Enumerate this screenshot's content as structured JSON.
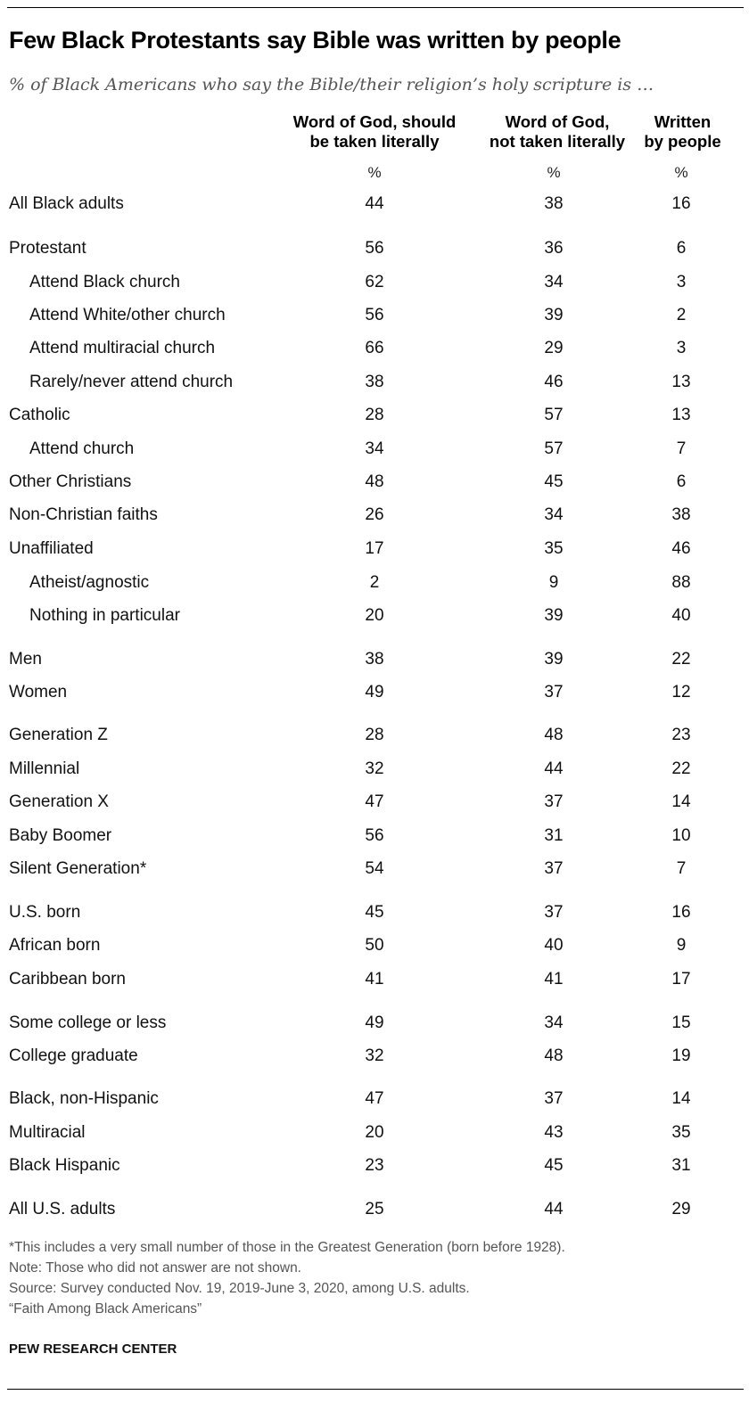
{
  "title": "Few Black Protestants say Bible was written by people",
  "subtitle": "% of Black Americans who say the Bible/their religion’s holy scripture is …",
  "chart_data": {
    "type": "table",
    "columns": [
      {
        "line1": "Word of God, should",
        "line2": "be taken literally",
        "unit": "%"
      },
      {
        "line1": "Word of God,",
        "line2": "not taken literally",
        "unit": "%"
      },
      {
        "line1": "Written",
        "line2": "by people",
        "unit": "%"
      }
    ],
    "rows": [
      {
        "label": "All Black adults",
        "indent": false,
        "values": [
          "44",
          "38",
          "16"
        ]
      },
      {
        "label": "Protestant",
        "indent": false,
        "values": [
          "56",
          "36",
          "6"
        ]
      },
      {
        "label": "Attend Black church",
        "indent": true,
        "values": [
          "62",
          "34",
          "3"
        ]
      },
      {
        "label": "Attend White/other church",
        "indent": true,
        "values": [
          "56",
          "39",
          "2"
        ]
      },
      {
        "label": "Attend multiracial church",
        "indent": true,
        "values": [
          "66",
          "29",
          "3"
        ]
      },
      {
        "label": "Rarely/never attend church",
        "indent": true,
        "values": [
          "38",
          "46",
          "13"
        ]
      },
      {
        "label": "Catholic",
        "indent": false,
        "values": [
          "28",
          "57",
          "13"
        ]
      },
      {
        "label": "Attend church",
        "indent": true,
        "values": [
          "34",
          "57",
          "7"
        ]
      },
      {
        "label": "Other Christians",
        "indent": false,
        "values": [
          "48",
          "45",
          "6"
        ]
      },
      {
        "label": "Non-Christian faiths",
        "indent": false,
        "values": [
          "26",
          "34",
          "38"
        ]
      },
      {
        "label": "Unaffiliated",
        "indent": false,
        "values": [
          "17",
          "35",
          "46"
        ]
      },
      {
        "label": "Atheist/agnostic",
        "indent": true,
        "values": [
          "2",
          "9",
          "88"
        ]
      },
      {
        "label": "Nothing in particular",
        "indent": true,
        "values": [
          "20",
          "39",
          "40"
        ]
      },
      {
        "label": "Men",
        "indent": false,
        "values": [
          "38",
          "39",
          "22"
        ]
      },
      {
        "label": "Women",
        "indent": false,
        "values": [
          "49",
          "37",
          "12"
        ]
      },
      {
        "label": "Generation Z",
        "indent": false,
        "values": [
          "28",
          "48",
          "23"
        ]
      },
      {
        "label": "Millennial",
        "indent": false,
        "values": [
          "32",
          "44",
          "22"
        ]
      },
      {
        "label": "Generation X",
        "indent": false,
        "values": [
          "47",
          "37",
          "14"
        ]
      },
      {
        "label": "Baby Boomer",
        "indent": false,
        "values": [
          "56",
          "31",
          "10"
        ]
      },
      {
        "label": "Silent Generation*",
        "indent": false,
        "values": [
          "54",
          "37",
          "7"
        ]
      },
      {
        "label": "U.S. born",
        "indent": false,
        "values": [
          "45",
          "37",
          "16"
        ]
      },
      {
        "label": "African born",
        "indent": false,
        "values": [
          "50",
          "40",
          "9"
        ]
      },
      {
        "label": "Caribbean born",
        "indent": false,
        "values": [
          "41",
          "41",
          "17"
        ]
      },
      {
        "label": "Some college or less",
        "indent": false,
        "values": [
          "49",
          "34",
          "15"
        ]
      },
      {
        "label": "College graduate",
        "indent": false,
        "values": [
          "32",
          "48",
          "19"
        ]
      },
      {
        "label": "Black, non-Hispanic",
        "indent": false,
        "values": [
          "47",
          "37",
          "14"
        ]
      },
      {
        "label": "Multiracial",
        "indent": false,
        "values": [
          "20",
          "43",
          "35"
        ]
      },
      {
        "label": "Black Hispanic",
        "indent": false,
        "values": [
          "23",
          "45",
          "31"
        ]
      },
      {
        "label": "All U.S. adults",
        "indent": false,
        "values": [
          "25",
          "44",
          "29"
        ]
      }
    ]
  },
  "notes": {
    "footnote": "*This includes a very small number of those in the Greatest Generation (born before 1928).",
    "note": "Note: Those who did not answer are not shown.",
    "source": "Source: Survey conducted Nov. 19, 2019-June 3, 2020, among U.S. adults.",
    "report": "“Faith Among Black Americans”"
  },
  "brand": "PEW RESEARCH CENTER"
}
